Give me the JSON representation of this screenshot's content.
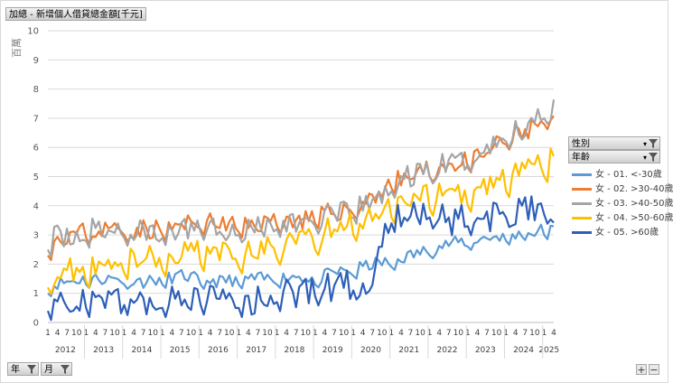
{
  "header": {
    "title": "加總 - 新增個人借貸總金額[千元]"
  },
  "axis": {
    "unit_label": "百萬"
  },
  "filters": {
    "gender_label": "性別",
    "age_label": "年齡",
    "year_label": "年",
    "month_label": "月"
  },
  "controls": {
    "expand": "+",
    "collapse": "−"
  },
  "colors": {
    "s1": "#5B9BD5",
    "s2": "#ED7D31",
    "s3": "#A5A5A5",
    "s4": "#FFC000",
    "s5": "#2E5FB8"
  },
  "chart_data": {
    "type": "line",
    "title": "加總 - 新增個人借貸總金額[千元]",
    "ylabel": "百萬",
    "ylim": [
      0,
      10
    ],
    "yticks": [
      0,
      1,
      2,
      3,
      4,
      5,
      6,
      7,
      8,
      9,
      10
    ],
    "grid": true,
    "legend_position": "right",
    "month_tick_labels": [
      "1",
      "4",
      "7",
      "10"
    ],
    "years": [
      "2012",
      "2013",
      "2014",
      "2015",
      "2016",
      "2017",
      "2018",
      "2019",
      "2020",
      "2021",
      "2022",
      "2023",
      "2024",
      "2025"
    ],
    "series": [
      {
        "name": "女 - 01. <-30歲",
        "start": [
          1.0,
          1.2,
          1.3,
          1.4,
          1.3,
          1.2,
          1.3,
          1.4,
          1.3,
          1.2,
          1.3,
          1.3,
          1.3,
          1.4,
          1.3,
          1.5,
          1.6,
          1.8,
          1.9,
          2.1,
          2.3,
          2.5,
          2.6,
          2.7,
          2.8,
          2.8,
          3.0,
          2.9,
          2.5
        ],
        "mid": [
          1.3,
          1.4,
          1.5,
          1.5,
          1.5,
          1.4,
          1.5,
          1.6,
          1.5,
          1.4,
          1.5,
          1.5,
          1.5,
          1.6,
          1.5,
          1.7,
          1.8,
          2.0,
          2.1,
          2.3,
          2.5,
          2.7,
          2.8,
          2.9,
          3.0,
          3.0,
          3.2,
          3.1,
          2.9
        ],
        "noise": 0.22,
        "seed": 11
      },
      {
        "name": "女 - 02. >30-40歲",
        "start": [
          2.3,
          2.6,
          2.9,
          3.0,
          3.0,
          3.0,
          3.0,
          3.1,
          3.2,
          3.2,
          3.1,
          3.2,
          3.3,
          3.3,
          3.4,
          3.6,
          3.7,
          4.1,
          4.6,
          4.8,
          5.0,
          5.2,
          5.3,
          5.6,
          6.1,
          6.3,
          6.8,
          7.0,
          5.8
        ],
        "mid": [
          2.8,
          3.0,
          3.1,
          3.2,
          3.2,
          3.2,
          3.2,
          3.3,
          3.4,
          3.4,
          3.3,
          3.4,
          3.5,
          3.5,
          3.6,
          3.8,
          3.9,
          4.3,
          4.8,
          5.0,
          5.2,
          5.4,
          5.5,
          5.8,
          6.3,
          6.5,
          7.0,
          7.2,
          6.5
        ],
        "noise": 0.35,
        "seed": 23
      },
      {
        "name": "女 - 03. >40-50歲",
        "start": [
          2.5,
          2.7,
          2.8,
          3.0,
          2.9,
          2.9,
          2.9,
          3.0,
          3.1,
          3.1,
          3.0,
          3.1,
          3.2,
          3.2,
          3.3,
          3.4,
          3.6,
          3.9,
          4.5,
          4.8,
          5.0,
          5.2,
          5.4,
          5.7,
          6.2,
          6.5,
          7.0,
          7.5,
          7.0
        ],
        "mid": [
          2.8,
          3.0,
          3.1,
          3.2,
          3.1,
          3.1,
          3.1,
          3.2,
          3.3,
          3.3,
          3.2,
          3.3,
          3.4,
          3.4,
          3.5,
          3.6,
          3.8,
          4.1,
          4.7,
          5.0,
          5.2,
          5.4,
          5.6,
          5.9,
          6.4,
          6.7,
          7.2,
          7.7,
          8.2
        ],
        "noise": 0.45,
        "seed": 37
      },
      {
        "name": "女 - 04. >50-60歲",
        "start": [
          1.2,
          1.3,
          1.4,
          1.6,
          1.7,
          1.8,
          1.8,
          1.9,
          2.0,
          2.0,
          1.9,
          2.0,
          2.2,
          2.3,
          2.5,
          2.8,
          3.0,
          3.2,
          3.6,
          3.8,
          3.9,
          3.9,
          4.0,
          4.2,
          4.5,
          4.7,
          5.0,
          5.3,
          5.2
        ],
        "mid": [
          1.6,
          1.8,
          1.9,
          2.1,
          2.2,
          2.3,
          2.3,
          2.4,
          2.5,
          2.5,
          2.4,
          2.5,
          2.7,
          2.8,
          3.0,
          3.3,
          3.5,
          3.7,
          4.1,
          4.3,
          4.4,
          4.4,
          4.5,
          4.7,
          5.0,
          5.2,
          5.5,
          5.8,
          6.4
        ],
        "noise": 0.4,
        "seed": 53
      },
      {
        "name": "女 - 05. >60歲",
        "start": [
          0.4,
          0.5,
          0.5,
          0.6,
          0.6,
          0.5,
          0.5,
          0.6,
          0.6,
          0.6,
          0.5,
          0.6,
          0.7,
          0.8,
          0.9,
          1.0,
          1.1,
          1.2,
          3.4,
          3.6,
          3.6,
          3.3,
          3.3,
          3.4,
          3.6,
          3.6,
          3.7,
          3.8,
          3.9
        ],
        "mid": [
          0.6,
          0.7,
          0.7,
          0.8,
          0.8,
          0.7,
          0.7,
          0.8,
          0.8,
          0.8,
          0.7,
          0.8,
          0.9,
          1.0,
          1.1,
          1.2,
          1.3,
          1.4,
          3.6,
          3.8,
          3.8,
          3.5,
          3.5,
          3.6,
          3.8,
          3.8,
          3.9,
          4.0,
          4.4
        ],
        "noise": 0.55,
        "seed": 71
      }
    ]
  }
}
